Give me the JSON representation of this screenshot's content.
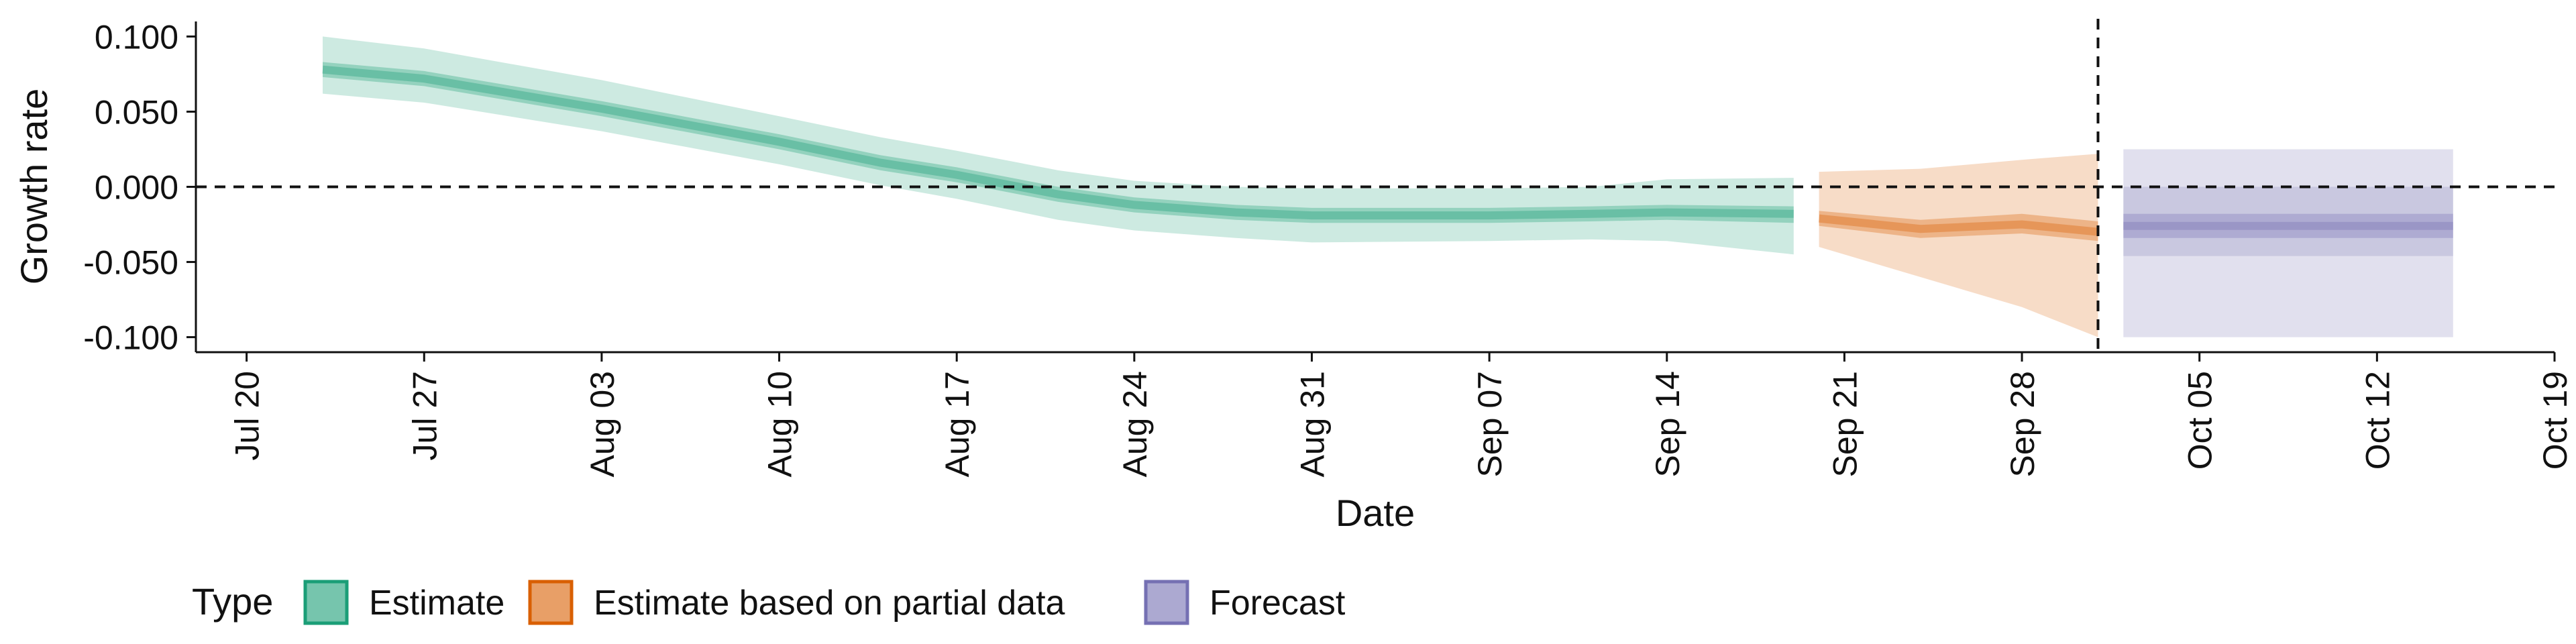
{
  "chart_data": {
    "type": "area",
    "xlabel": "Date",
    "ylabel": "Growth rate",
    "x_ticks": [
      "Jul 20",
      "Jul 27",
      "Aug 03",
      "Aug 10",
      "Aug 17",
      "Aug 24",
      "Aug 31",
      "Sep 07",
      "Sep 14",
      "Sep 21",
      "Sep 28",
      "Oct 05",
      "Oct 12",
      "Oct 19"
    ],
    "x_tick_dates": [
      "2020-07-20",
      "2020-07-27",
      "2020-08-03",
      "2020-08-10",
      "2020-08-17",
      "2020-08-24",
      "2020-08-31",
      "2020-09-07",
      "2020-09-14",
      "2020-09-21",
      "2020-09-28",
      "2020-10-05",
      "2020-10-12",
      "2020-10-19"
    ],
    "xlim": [
      "2020-07-18",
      "2020-10-19"
    ],
    "y_ticks": [
      "0.100",
      "0.050",
      "0.000",
      "-0.050",
      "-0.100"
    ],
    "y_tick_values": [
      0.1,
      0.05,
      0,
      -0.05,
      -0.1
    ],
    "ylim": [
      -0.11,
      0.11
    ],
    "reference_lines": [
      {
        "axis": "y",
        "value": 0,
        "style": "dashed"
      },
      {
        "axis": "x",
        "value": "2020-10-01",
        "style": "dashed"
      }
    ],
    "legend": {
      "title": "Type",
      "position": "bottom-left"
    },
    "series": [
      {
        "name": "Estimate",
        "color": "#1b9e77",
        "x": [
          "2020-07-23",
          "2020-07-27",
          "2020-08-03",
          "2020-08-10",
          "2020-08-14",
          "2020-08-17",
          "2020-08-21",
          "2020-08-24",
          "2020-08-28",
          "2020-08-31",
          "2020-09-07",
          "2020-09-11",
          "2020-09-14",
          "2020-09-19"
        ],
        "median": [
          0.078,
          0.072,
          0.052,
          0.03,
          0.016,
          0.008,
          -0.005,
          -0.012,
          -0.017,
          -0.019,
          -0.019,
          -0.018,
          -0.017,
          -0.018
        ],
        "lower_50": [
          0.073,
          0.067,
          0.047,
          0.025,
          0.011,
          0.003,
          -0.01,
          -0.017,
          -0.022,
          -0.024,
          -0.024,
          -0.023,
          -0.022,
          -0.024
        ],
        "upper_50": [
          0.083,
          0.077,
          0.057,
          0.035,
          0.021,
          0.013,
          0.0,
          -0.007,
          -0.012,
          -0.014,
          -0.014,
          -0.013,
          -0.012,
          -0.013
        ],
        "lower_90": [
          0.062,
          0.056,
          0.037,
          0.015,
          0.001,
          -0.008,
          -0.022,
          -0.029,
          -0.034,
          -0.037,
          -0.036,
          -0.035,
          -0.036,
          -0.045
        ],
        "upper_90": [
          0.1,
          0.092,
          0.071,
          0.047,
          0.033,
          0.024,
          0.011,
          0.004,
          0.0,
          -0.001,
          -0.001,
          0.0,
          0.005,
          0.006
        ]
      },
      {
        "name": "Estimate based on partial data",
        "color": "#d95f02",
        "x": [
          "2020-09-20",
          "2020-09-24",
          "2020-09-28",
          "2020-10-01"
        ],
        "median": [
          -0.021,
          -0.028,
          -0.025,
          -0.03
        ],
        "lower_50": [
          -0.026,
          -0.034,
          -0.031,
          -0.036
        ],
        "upper_50": [
          -0.016,
          -0.022,
          -0.018,
          -0.023
        ],
        "lower_90": [
          -0.04,
          -0.06,
          -0.08,
          -0.1
        ],
        "upper_90": [
          0.01,
          0.012,
          0.018,
          0.022
        ]
      },
      {
        "name": "Forecast",
        "color": "#7570b3",
        "x": [
          "2020-10-02",
          "2020-10-15"
        ],
        "median": [
          -0.026,
          -0.026
        ],
        "lower_50": [
          -0.034,
          -0.034
        ],
        "upper_50": [
          -0.018,
          -0.018
        ],
        "lower_90": [
          -0.046,
          -0.046
        ],
        "upper_90": [
          0.0,
          0.0
        ],
        "lower_outer": [
          -0.1,
          -0.1
        ],
        "upper_outer": [
          0.025,
          0.025
        ]
      }
    ]
  }
}
